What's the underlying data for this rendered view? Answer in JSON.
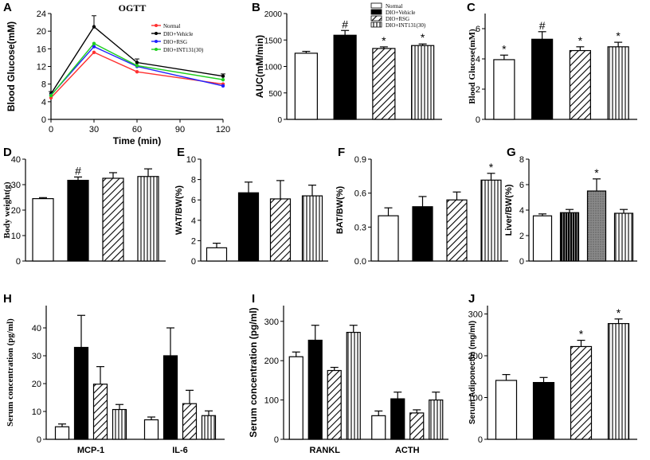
{
  "chart_data": [
    {
      "panel": "A",
      "type": "line",
      "title": "OGTT",
      "xlabel": "Time (min)",
      "ylabel": "Blood Glucose(mM)",
      "x": [
        0,
        30,
        60,
        120
      ],
      "xticks": [
        0,
        30,
        60,
        90,
        120
      ],
      "xlim": [
        0,
        120
      ],
      "yticks": [
        0,
        4,
        8,
        12,
        16,
        20,
        24
      ],
      "ylim": [
        0,
        24
      ],
      "series": [
        {
          "name": "Normal",
          "color": "#ff3030",
          "values": [
            4.9,
            15.2,
            10.8,
            8.0
          ]
        },
        {
          "name": "DIO+Vehicle",
          "color": "#000000",
          "values": [
            5.8,
            21.0,
            12.9,
            9.8
          ],
          "errors": [
            0.5,
            2.5,
            0.8,
            0.5
          ]
        },
        {
          "name": "DIO+RSG",
          "color": "#2020ff",
          "values": [
            5.5,
            16.5,
            12.0,
            7.6
          ]
        },
        {
          "name": "DIO+INT131(30)",
          "color": "#20d020",
          "values": [
            5.4,
            17.2,
            12.2,
            9.0
          ]
        }
      ]
    },
    {
      "panel": "B",
      "type": "bar",
      "ylabel": "AUC(mM/min)",
      "categories": [
        "Normal",
        "DIO+Vehicle",
        "DIO+RSG",
        "DIO+INT131(30)"
      ],
      "values": [
        1250,
        1590,
        1340,
        1395
      ],
      "errors": [
        35,
        90,
        30,
        30
      ],
      "annotations": [
        "",
        "#",
        "*",
        "*"
      ],
      "yticks": [
        0,
        500,
        1000,
        1500,
        2000
      ],
      "ylim": [
        0,
        2000
      ],
      "legend": [
        "Normal",
        "DIO+Vehicle",
        "DIO+RSG",
        "DIO+INT131(30)"
      ]
    },
    {
      "panel": "C",
      "type": "bar",
      "ylabel": "Blood Glucose(mM)",
      "categories": [
        "Normal",
        "DIO+Vehicle",
        "DIO+RSG",
        "DIO+INT131(30)"
      ],
      "values": [
        3.95,
        5.3,
        4.55,
        4.8
      ],
      "errors": [
        0.3,
        0.5,
        0.25,
        0.3
      ],
      "annotations": [
        "*",
        "#",
        "*",
        "*"
      ],
      "yticks": [
        0,
        2,
        4,
        6
      ],
      "ylim": [
        0,
        7
      ]
    },
    {
      "panel": "D",
      "type": "bar",
      "ylabel": "Body weight(g)",
      "categories": [
        "Normal",
        "DIO+Vehicle",
        "DIO+RSG",
        "DIO+INT131(30)"
      ],
      "values": [
        24.5,
        31.7,
        32.5,
        33.2
      ],
      "errors": [
        0.4,
        1.3,
        2.2,
        3.0
      ],
      "annotations": [
        "",
        "#",
        "",
        ""
      ],
      "yticks": [
        0,
        10,
        20,
        30,
        40
      ],
      "ylim": [
        0,
        40
      ]
    },
    {
      "panel": "E",
      "type": "bar",
      "ylabel": "WAT/BW(%)",
      "categories": [
        "Normal",
        "DIO+Vehicle",
        "DIO+RSG",
        "DIO+INT131(30)"
      ],
      "values": [
        1.3,
        6.7,
        6.1,
        6.4
      ],
      "errors": [
        0.45,
        1.05,
        1.8,
        1.05
      ],
      "annotations": [
        "",
        "",
        "",
        ""
      ],
      "yticks": [
        0,
        2,
        4,
        6,
        8,
        10
      ],
      "ylim": [
        0,
        10
      ]
    },
    {
      "panel": "F",
      "type": "bar",
      "ylabel": "BAT/BW(%)",
      "categories": [
        "Normal",
        "DIO+Vehicle",
        "DIO+RSG",
        "DIO+INT131(30)"
      ],
      "values": [
        0.4,
        0.48,
        0.54,
        0.715
      ],
      "errors": [
        0.07,
        0.09,
        0.07,
        0.06
      ],
      "annotations": [
        "",
        "",
        "",
        "*"
      ],
      "yticks": [
        0.0,
        0.3,
        0.6,
        0.9
      ],
      "ylim": [
        0,
        0.9
      ]
    },
    {
      "panel": "G",
      "type": "bar",
      "ylabel": "Liver/BW(%)",
      "categories": [
        "Normal",
        "DIO+Vehicle",
        "DIO+RSG",
        "DIO+INT131(30)"
      ],
      "values": [
        3.55,
        3.8,
        5.5,
        3.75
      ],
      "errors": [
        0.15,
        0.25,
        0.95,
        0.3
      ],
      "annotations": [
        "",
        "",
        "*",
        ""
      ],
      "yticks": [
        0,
        2,
        4,
        6,
        8
      ],
      "ylim": [
        0,
        8
      ]
    },
    {
      "panel": "H",
      "type": "bar",
      "ylabel": "Serum concentration (pg/ml)",
      "categories": [
        "MCP-1",
        "IL-6"
      ],
      "series": [
        {
          "name": "Normal",
          "values": [
            4.5,
            7.0
          ],
          "errors": [
            1.0,
            1.0
          ]
        },
        {
          "name": "DIO+Vehicle",
          "values": [
            33.0,
            30.0
          ],
          "errors": [
            11.5,
            10.0
          ]
        },
        {
          "name": "DIO+RSG",
          "values": [
            19.8,
            12.8
          ],
          "errors": [
            6.3,
            4.8
          ]
        },
        {
          "name": "DIO+INT131(30)",
          "values": [
            10.7,
            8.5
          ],
          "errors": [
            1.8,
            1.7
          ]
        }
      ],
      "yticks": [
        0,
        10,
        20,
        30,
        40
      ],
      "ylim": [
        0,
        48
      ]
    },
    {
      "panel": "I",
      "type": "bar",
      "ylabel": "Serum concentration (pg/ml)",
      "categories": [
        "RANKL",
        "ACTH"
      ],
      "series": [
        {
          "name": "Normal",
          "values": [
            210,
            60
          ],
          "errors": [
            12,
            12
          ]
        },
        {
          "name": "DIO+Vehicle",
          "values": [
            252,
            103
          ],
          "errors": [
            38,
            17
          ]
        },
        {
          "name": "DIO+RSG",
          "values": [
            175,
            67
          ],
          "errors": [
            8,
            8
          ]
        },
        {
          "name": "DIO+INT131(30)",
          "values": [
            272,
            100
          ],
          "errors": [
            18,
            20
          ]
        }
      ],
      "yticks": [
        0,
        100,
        200,
        300
      ],
      "ylim": [
        0,
        340
      ]
    },
    {
      "panel": "J",
      "type": "bar",
      "ylabel": "Serum Adiponectin (mg/ml)",
      "categories": [
        "Normal",
        "DIO+Vehicle",
        "DIO+RSG",
        "DIO+INT131(30)"
      ],
      "values": [
        141,
        136,
        222,
        277
      ],
      "errors": [
        14,
        12,
        15,
        11
      ],
      "annotations": [
        "",
        "",
        "*",
        "*"
      ],
      "yticks": [
        0,
        100,
        200,
        300
      ],
      "ylim": [
        0,
        320
      ]
    }
  ]
}
